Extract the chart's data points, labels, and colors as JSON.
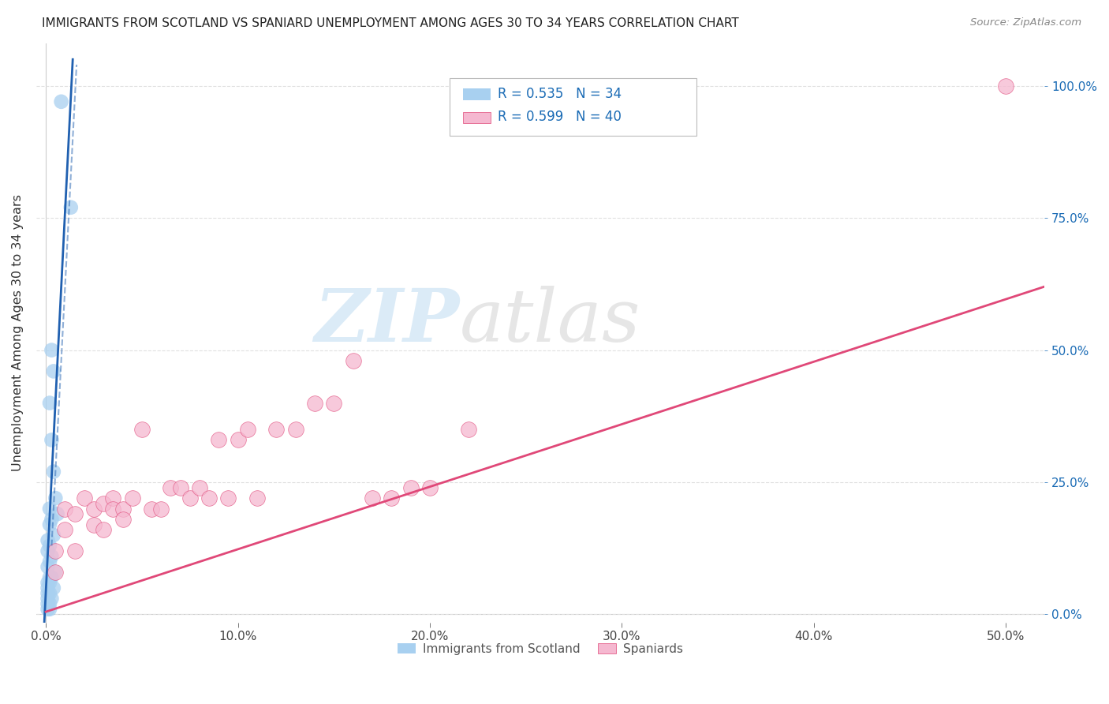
{
  "title": "IMMIGRANTS FROM SCOTLAND VS SPANIARD UNEMPLOYMENT AMONG AGES 30 TO 34 YEARS CORRELATION CHART",
  "source": "Source: ZipAtlas.com",
  "ylabel": "Unemployment Among Ages 30 to 34 years",
  "x_ticks": [
    0.0,
    0.1,
    0.2,
    0.3,
    0.4,
    0.5
  ],
  "x_tick_labels": [
    "0.0%",
    "10.0%",
    "20.0%",
    "30.0%",
    "40.0%",
    "50.0%"
  ],
  "y_ticks": [
    0.0,
    0.25,
    0.5,
    0.75,
    1.0
  ],
  "y_tick_labels": [
    "0.0%",
    "25.0%",
    "50.0%",
    "75.0%",
    "100.0%"
  ],
  "xlim": [
    -0.005,
    0.52
  ],
  "ylim": [
    -0.015,
    1.08
  ],
  "watermark_zip": "ZIP",
  "watermark_atlas": "atlas",
  "blue_scatter_x": [
    0.008,
    0.013,
    0.003,
    0.004,
    0.002,
    0.003,
    0.004,
    0.005,
    0.002,
    0.006,
    0.003,
    0.002,
    0.004,
    0.001,
    0.002,
    0.001,
    0.003,
    0.002,
    0.001,
    0.005,
    0.002,
    0.003,
    0.001,
    0.002,
    0.001,
    0.004,
    0.002,
    0.001,
    0.003,
    0.001,
    0.002,
    0.001,
    0.002,
    0.001
  ],
  "blue_scatter_y": [
    0.97,
    0.77,
    0.5,
    0.46,
    0.4,
    0.33,
    0.27,
    0.22,
    0.2,
    0.19,
    0.18,
    0.17,
    0.15,
    0.14,
    0.13,
    0.12,
    0.11,
    0.1,
    0.09,
    0.08,
    0.07,
    0.07,
    0.06,
    0.06,
    0.05,
    0.05,
    0.04,
    0.04,
    0.03,
    0.03,
    0.02,
    0.02,
    0.01,
    0.01
  ],
  "blue_line_x": [
    -0.002,
    0.014
  ],
  "blue_line_y": [
    -0.1,
    1.05
  ],
  "blue_color": "#a8d0f0",
  "blue_line_color": "#2060b0",
  "pink_scatter_x": [
    0.5,
    0.005,
    0.005,
    0.01,
    0.01,
    0.015,
    0.015,
    0.02,
    0.025,
    0.025,
    0.03,
    0.03,
    0.035,
    0.035,
    0.04,
    0.04,
    0.045,
    0.05,
    0.055,
    0.06,
    0.065,
    0.07,
    0.075,
    0.08,
    0.085,
    0.09,
    0.095,
    0.1,
    0.105,
    0.11,
    0.12,
    0.13,
    0.14,
    0.15,
    0.16,
    0.17,
    0.18,
    0.19,
    0.2,
    0.22
  ],
  "pink_scatter_y": [
    1.0,
    0.12,
    0.08,
    0.2,
    0.16,
    0.19,
    0.12,
    0.22,
    0.2,
    0.17,
    0.21,
    0.16,
    0.22,
    0.2,
    0.2,
    0.18,
    0.22,
    0.35,
    0.2,
    0.2,
    0.24,
    0.24,
    0.22,
    0.24,
    0.22,
    0.33,
    0.22,
    0.33,
    0.35,
    0.22,
    0.35,
    0.35,
    0.4,
    0.4,
    0.48,
    0.22,
    0.22,
    0.24,
    0.24,
    0.35
  ],
  "pink_line_x": [
    0.0,
    0.52
  ],
  "pink_line_y": [
    0.005,
    0.62
  ],
  "pink_color": "#f5b8d0",
  "pink_line_color": "#e04878",
  "background_color": "#ffffff",
  "grid_color": "#e0e0e0",
  "legend_blue_text": "R = 0.535   N = 34",
  "legend_pink_text": "R = 0.599   N = 40",
  "legend_text_color": "#1a6bb5"
}
